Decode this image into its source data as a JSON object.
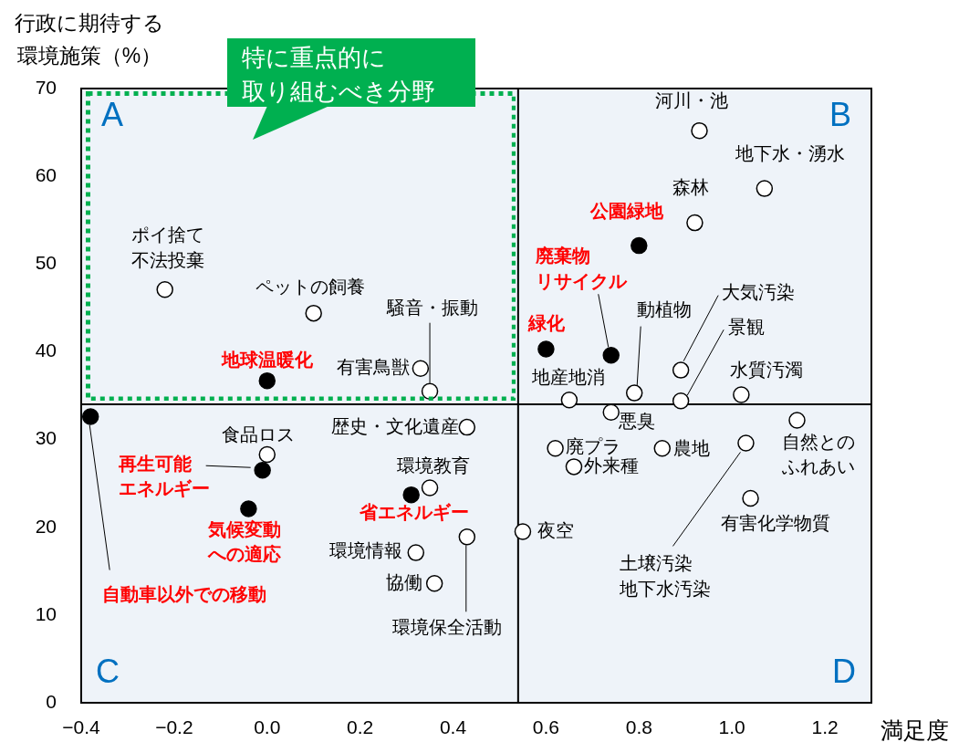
{
  "chart_data": {
    "type": "scatter",
    "xlabel": "満足度",
    "ylabel": "行政に期待する環境施策（%）",
    "xlim": [
      -0.4,
      1.3
    ],
    "ylim": [
      0,
      70
    ],
    "xticks": [
      {
        "value": -0.4,
        "label": "−0.4"
      },
      {
        "value": -0.2,
        "label": "−0.2"
      },
      {
        "value": 0,
        "label": "0.0"
      },
      0.2,
      0.4,
      0.6,
      0.8,
      {
        "value": 1,
        "label": "1.0"
      },
      1.2
    ],
    "yticks": [
      0,
      10,
      20,
      30,
      40,
      50,
      60,
      70
    ],
    "marker": "circle",
    "ref_lines": [
      {
        "axis": "x",
        "value": 0.54,
        "color": "#000000"
      },
      {
        "axis": "y",
        "value": 34,
        "color": "#000000"
      }
    ],
    "annotations": [
      "A",
      "B",
      "C",
      "D",
      "特に重点的に取り組むべき分野"
    ],
    "series": [
      {
        "color": "#ffffff",
        "x": [
          -0.22,
          0.1,
          0.35,
          0.33,
          0.93,
          1.07,
          0.92,
          0.89,
          0.65,
          0.79,
          0.89,
          1.02,
          0.74,
          1.14,
          0.62,
          0.85,
          0.66,
          1.03,
          1.04,
          0.55,
          0.0,
          0.43,
          0.35,
          0.32,
          0.36,
          0.43
        ],
        "values": [
          47.1,
          44.4,
          35.5,
          38.1,
          65.2,
          58.6,
          54.7,
          37.9,
          34.5,
          35.3,
          34.4,
          35.1,
          33.1,
          32.2,
          29.0,
          29.0,
          26.9,
          29.6,
          23.3,
          19.5,
          28.3,
          31.4,
          24.5,
          17.1,
          13.6,
          18.9
        ],
        "value_labels": [
          "ポイ捨て不法投棄",
          "ペットの飼養",
          "騒音・振動",
          "有害鳥獣",
          "河川・池",
          "地下水・湧水",
          "森林",
          "大気汚染",
          "地産地消",
          "動植物",
          "景観",
          "水質汚濁",
          "悪臭",
          "自然とのふれあい",
          "廃プラ",
          "農地",
          "外来種",
          "土壌汚染地下水汚染",
          "有害化学物質",
          "夜空",
          "食品ロス",
          "歴史・文化遺産",
          "環境教育",
          "環境情報",
          "協働",
          "環境保全活動"
        ]
      },
      {
        "color": "#000000",
        "x": [
          -0.38,
          0.0,
          0.8,
          0.74,
          0.6,
          -0.01,
          -0.04,
          0.31
        ],
        "values": [
          32.6,
          36.7,
          52.1,
          39.6,
          40.3,
          26.5,
          22.1,
          23.7
        ],
        "value_labels": [
          "自動車以外での移動",
          "地球温暖化",
          "公園緑地",
          "廃棄物リサイクル",
          "緑化",
          "再生可能エネルギー",
          "気候変動への適応",
          "省エネルギー"
        ]
      }
    ]
  }
}
